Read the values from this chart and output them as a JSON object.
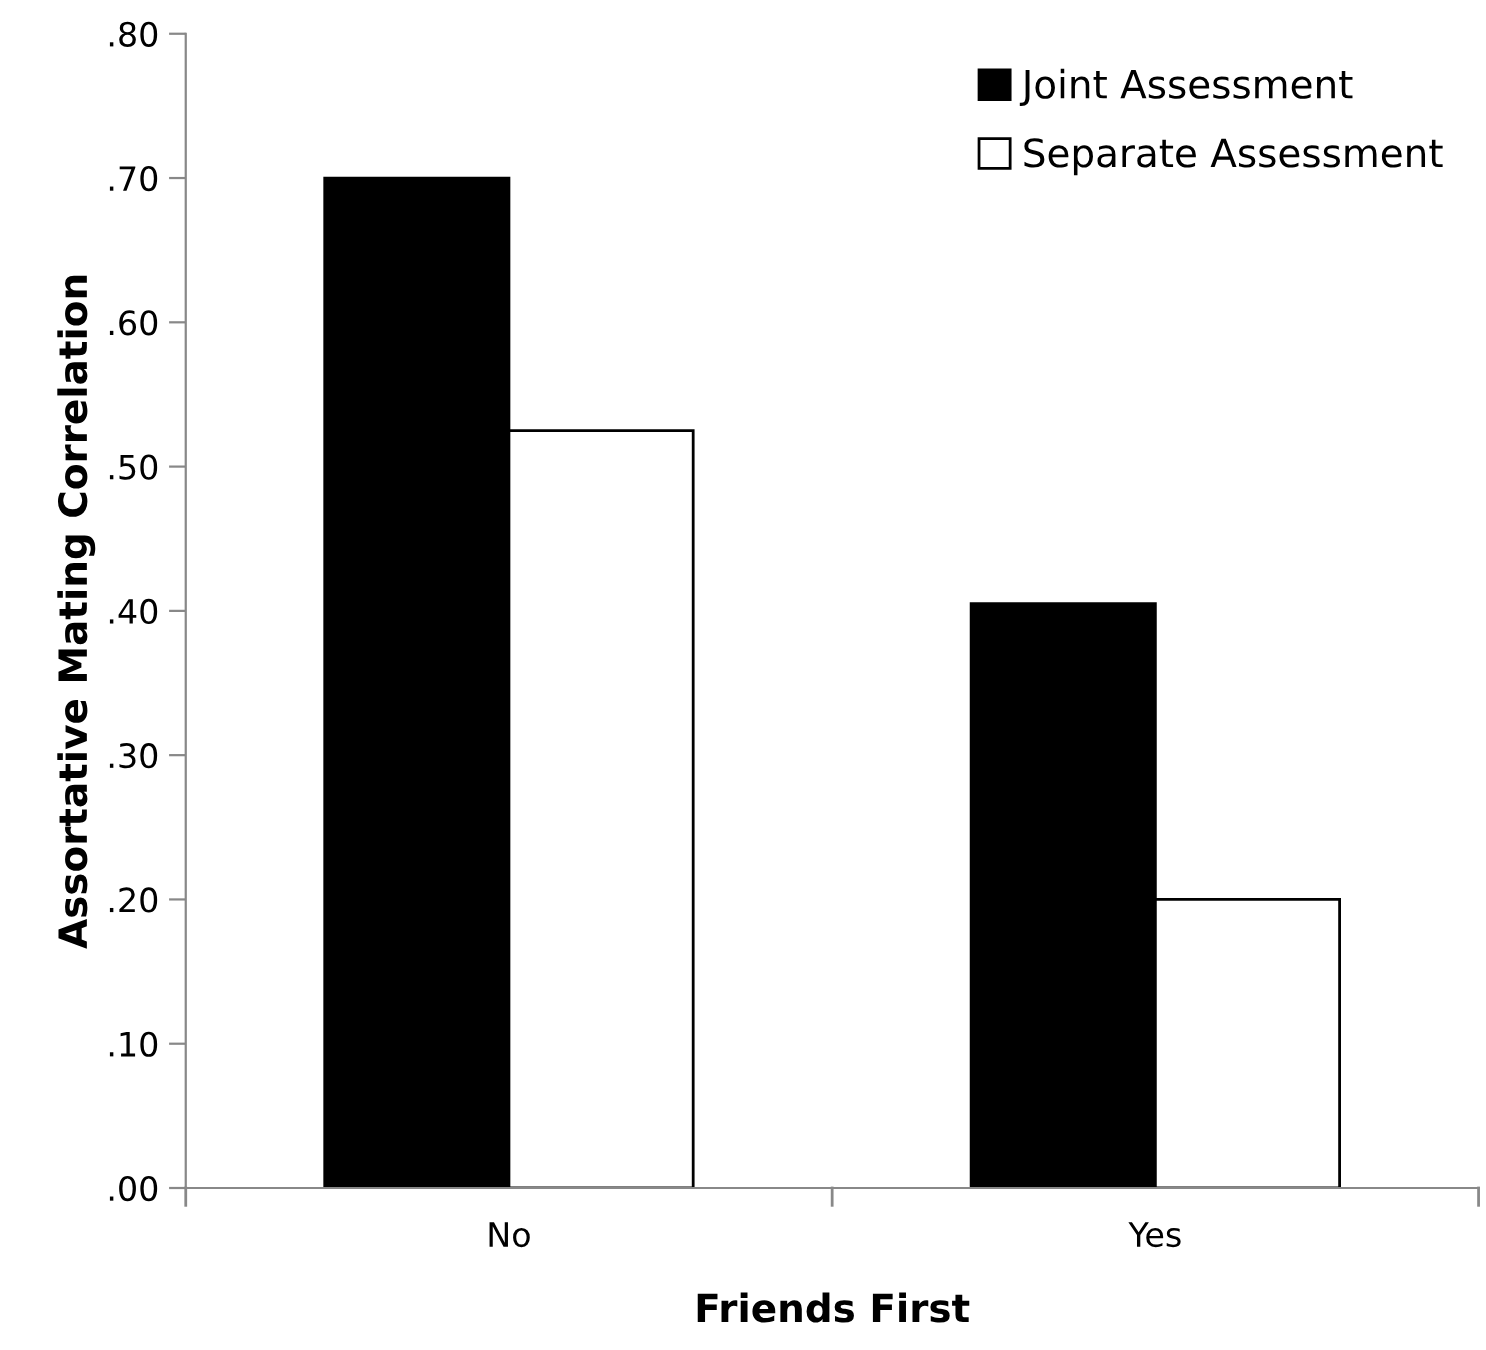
{
  "chart_data": {
    "type": "bar",
    "xlabel": "Friends First",
    "ylabel": "Assortative Mating Correlation",
    "categories": [
      "No",
      "Yes"
    ],
    "series": [
      {
        "name": "Joint Assessment",
        "color": "#000000",
        "values": [
          0.7,
          0.405
        ]
      },
      {
        "name": "Separate Assessment",
        "color": "#ffffff",
        "values": [
          0.525,
          0.2
        ]
      }
    ],
    "ylim": [
      0,
      0.8
    ],
    "yticks": [
      {
        "value": 0,
        "label": ".00"
      },
      {
        "value": 0.1,
        "label": ".10"
      },
      {
        "value": 0.2,
        "label": ".20"
      },
      {
        "value": 0.3,
        "label": ".30"
      },
      {
        "value": 0.4,
        "label": ".40"
      },
      {
        "value": 0.5,
        "label": ".50"
      },
      {
        "value": 0.6,
        "label": ".60"
      },
      {
        "value": 0.7,
        "label": ".70"
      },
      {
        "value": 0.8,
        "label": ".80"
      }
    ],
    "grid": false,
    "legend": "top right"
  }
}
